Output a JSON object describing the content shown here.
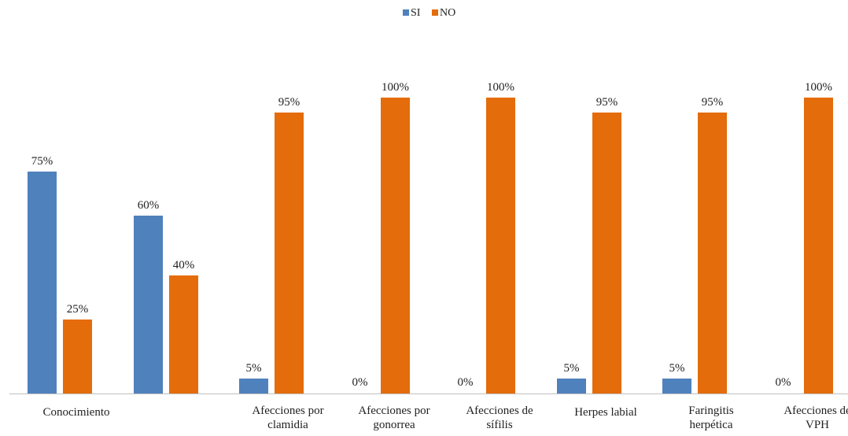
{
  "chart_data": {
    "type": "bar",
    "categories": [
      [
        "Conocimiento"
      ],
      [],
      [
        "Afecciones por",
        "clamidia"
      ],
      [
        "Afecciones por",
        "gonorrea"
      ],
      [
        "Afecciones de",
        "sífilis"
      ],
      [
        "Herpes labial"
      ],
      [
        "Faringitis",
        "herpética"
      ],
      [
        "Afecciones de",
        "VPH"
      ]
    ],
    "series": [
      {
        "name": "SI",
        "color": "#4F81BD",
        "values": [
          75,
          60,
          5,
          0,
          0,
          5,
          5,
          0
        ],
        "labels": [
          "75%",
          "60%",
          "5%",
          "0%",
          "0%",
          "5%",
          "5%",
          "0%"
        ]
      },
      {
        "name": "NO",
        "color": "#E46C0A",
        "values": [
          25,
          40,
          95,
          100,
          100,
          95,
          95,
          100
        ],
        "labels": [
          "25%",
          "40%",
          "95%",
          "100%",
          "100%",
          "95%",
          "95%",
          "100%"
        ]
      }
    ],
    "ylim": [
      0,
      100
    ],
    "grid": false,
    "legend_position": "top-center",
    "title": "",
    "xlabel": "",
    "ylabel": ""
  }
}
